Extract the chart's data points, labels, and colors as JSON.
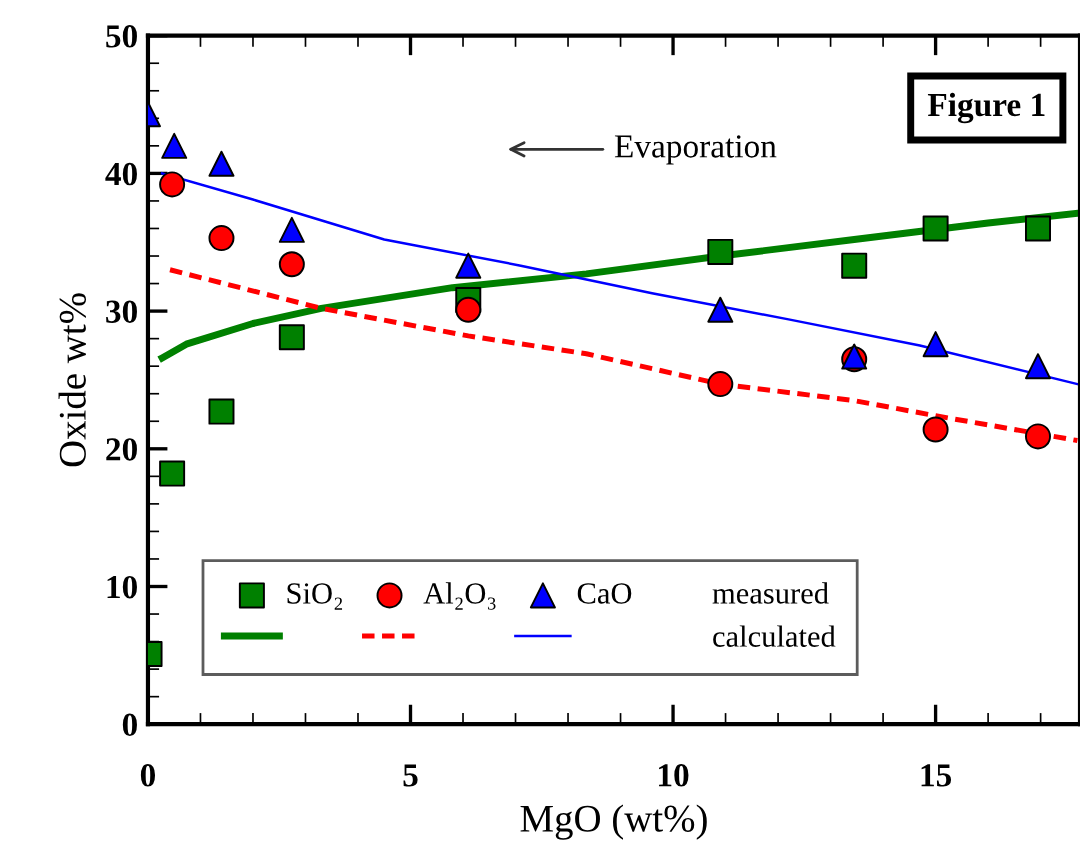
{
  "chart_data": {
    "type": "scatter",
    "xlabel": "MgO (wt%)",
    "ylabel": "Oxide wt%",
    "xlim": [
      0,
      17.75
    ],
    "ylim": [
      0,
      50
    ],
    "xticks": [
      0,
      5,
      10,
      15
    ],
    "yticks": [
      0,
      10,
      20,
      30,
      40,
      50
    ],
    "grid": false,
    "legend": "bottom",
    "annotations": [
      "Figure 1",
      "Evaporation",
      "measured",
      "calculated"
    ],
    "series": [
      {
        "name": "SiO₂",
        "marker": "square",
        "color": "#008000",
        "x": [
          0.03,
          0.46,
          1.4,
          2.74,
          6.1,
          10.9,
          13.45,
          15.0,
          16.95
        ],
        "values": [
          5.1,
          18.2,
          22.7,
          28.1,
          30.8,
          34.3,
          33.3,
          36.0,
          36.0
        ]
      },
      {
        "name": "Al₂O₃",
        "marker": "circle",
        "color": "#ff0000",
        "x": [
          0.46,
          1.4,
          2.74,
          6.1,
          10.9,
          13.45,
          15.0,
          16.95
        ],
        "values": [
          39.2,
          35.3,
          33.4,
          30.1,
          24.7,
          26.5,
          21.4,
          20.9
        ]
      },
      {
        "name": "CaO",
        "marker": "triangle",
        "color": "#0000ff",
        "x": [
          0.0,
          0.5,
          1.4,
          2.74,
          6.1,
          10.9,
          13.45,
          15.0,
          16.95
        ],
        "values": [
          44.3,
          42.0,
          40.7,
          35.9,
          33.3,
          30.1,
          26.7,
          27.6,
          26.0
        ]
      },
      {
        "type": "line",
        "line_style": "solid",
        "color": "#008000",
        "x": [
          0.27,
          0.73,
          2.0,
          3.3,
          5.8,
          8.35,
          10.9,
          13.45,
          16.0,
          17.7
        ],
        "values": [
          26.6,
          27.6,
          29.1,
          30.2,
          31.7,
          32.7,
          34.0,
          35.2,
          36.4,
          37.1
        ]
      },
      {
        "type": "line",
        "line_style": "dashed",
        "color": "#ff0000",
        "x": [
          0.42,
          3.3,
          6.1,
          8.35,
          10.9,
          13.45,
          15.0,
          17.7
        ],
        "values": [
          33.0,
          30.2,
          28.2,
          26.9,
          24.7,
          23.5,
          22.4,
          20.6
        ]
      },
      {
        "type": "line",
        "line_style": "solid",
        "color": "#0000ff",
        "x": [
          0.27,
          2.0,
          4.5,
          7.1,
          9.6,
          12.2,
          14.7,
          17.7
        ],
        "values": [
          40.0,
          38.1,
          35.2,
          33.3,
          31.3,
          29.4,
          27.5,
          24.7
        ]
      }
    ]
  }
}
